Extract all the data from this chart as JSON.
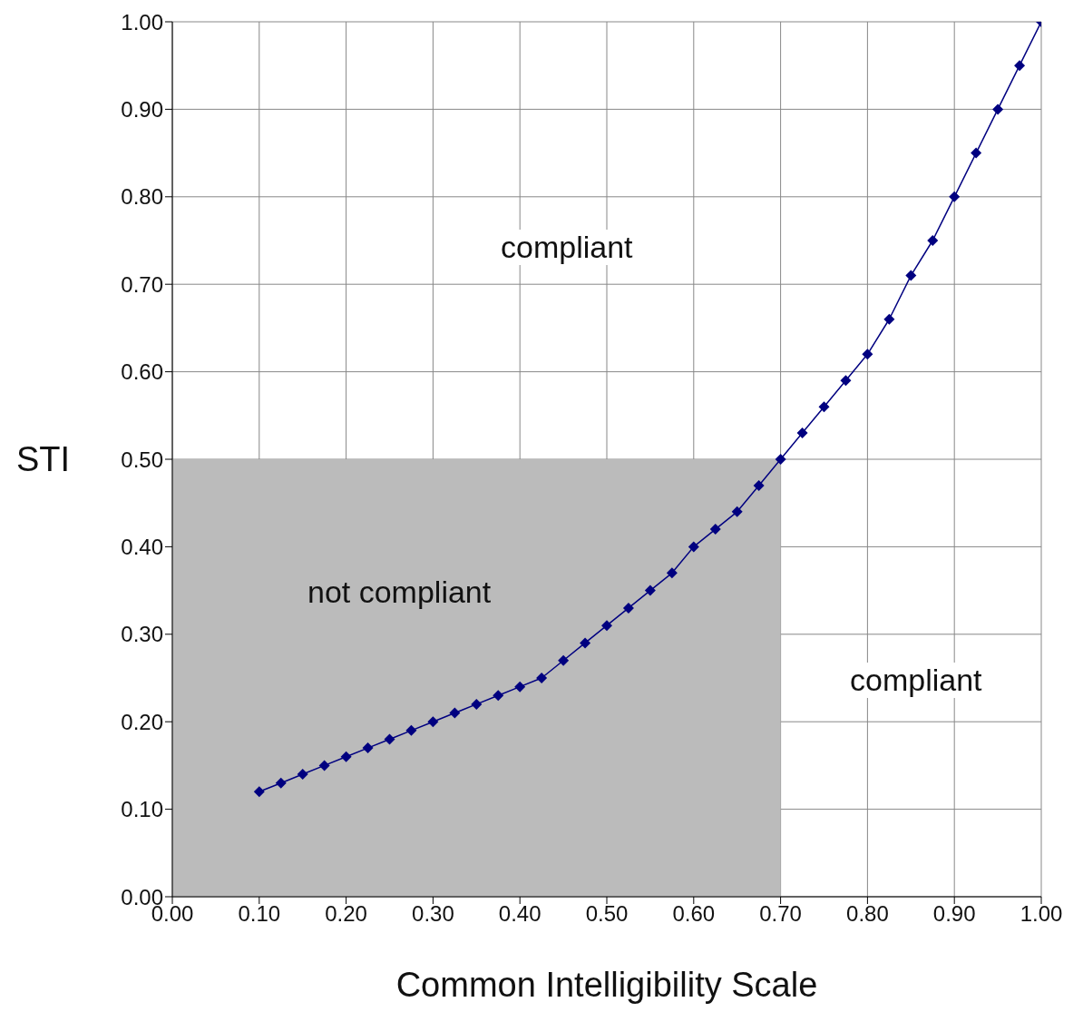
{
  "chart_data": {
    "type": "line",
    "xlabel": "Common Intelligibility Scale",
    "ylabel": "STI",
    "x": [
      0.1,
      0.125,
      0.15,
      0.175,
      0.2,
      0.225,
      0.25,
      0.275,
      0.3,
      0.325,
      0.35,
      0.375,
      0.4,
      0.425,
      0.45,
      0.475,
      0.5,
      0.525,
      0.55,
      0.575,
      0.6,
      0.625,
      0.65,
      0.675,
      0.7,
      0.725,
      0.75,
      0.775,
      0.8,
      0.825,
      0.85,
      0.875,
      0.9,
      0.925,
      0.95,
      0.975,
      1.0
    ],
    "series": [
      {
        "type": "area",
        "marker": "none",
        "color": "#bbbbbb",
        "x": [
          0,
          0.7
        ],
        "values": [
          0.5,
          0.5
        ]
      },
      {
        "marker": "diamond",
        "color": "#000080",
        "values": [
          0.12,
          0.13,
          0.14,
          0.15,
          0.16,
          0.17,
          0.18,
          0.19,
          0.2,
          0.21,
          0.22,
          0.23,
          0.24,
          0.25,
          0.27,
          0.29,
          0.31,
          0.33,
          0.35,
          0.37,
          0.4,
          0.42,
          0.44,
          0.47,
          0.5,
          0.53,
          0.56,
          0.59,
          0.62,
          0.66,
          0.71,
          0.75,
          0.8,
          0.85,
          0.9,
          0.95,
          1.0
        ]
      }
    ],
    "xlim": [
      0,
      1
    ],
    "ylim": [
      0,
      1
    ],
    "xticks": [
      {
        "value": 0,
        "label": "0.00"
      },
      {
        "value": 0.1,
        "label": "0.10"
      },
      {
        "value": 0.2,
        "label": "0.20"
      },
      {
        "value": 0.3,
        "label": "0.30"
      },
      {
        "value": 0.4,
        "label": "0.40"
      },
      {
        "value": 0.5,
        "label": "0.50"
      },
      {
        "value": 0.6,
        "label": "0.60"
      },
      {
        "value": 0.7,
        "label": "0.70"
      },
      {
        "value": 0.8,
        "label": "0.80"
      },
      {
        "value": 0.9,
        "label": "0.90"
      },
      {
        "value": 1,
        "label": "1.00"
      }
    ],
    "yticks": [
      {
        "value": 0,
        "label": "0.00"
      },
      {
        "value": 0.1,
        "label": "0.10"
      },
      {
        "value": 0.2,
        "label": "0.20"
      },
      {
        "value": 0.3,
        "label": "0.30"
      },
      {
        "value": 0.4,
        "label": "0.40"
      },
      {
        "value": 0.5,
        "label": "0.50"
      },
      {
        "value": 0.6,
        "label": "0.60"
      },
      {
        "value": 0.7,
        "label": "0.70"
      },
      {
        "value": 0.8,
        "label": "0.80"
      },
      {
        "value": 0.9,
        "label": "0.90"
      },
      {
        "value": 1,
        "label": "1.00"
      }
    ],
    "annotations": [
      "compliant",
      "not compliant",
      "compliant"
    ],
    "grid": true,
    "legend": false,
    "line_style": "solid"
  }
}
